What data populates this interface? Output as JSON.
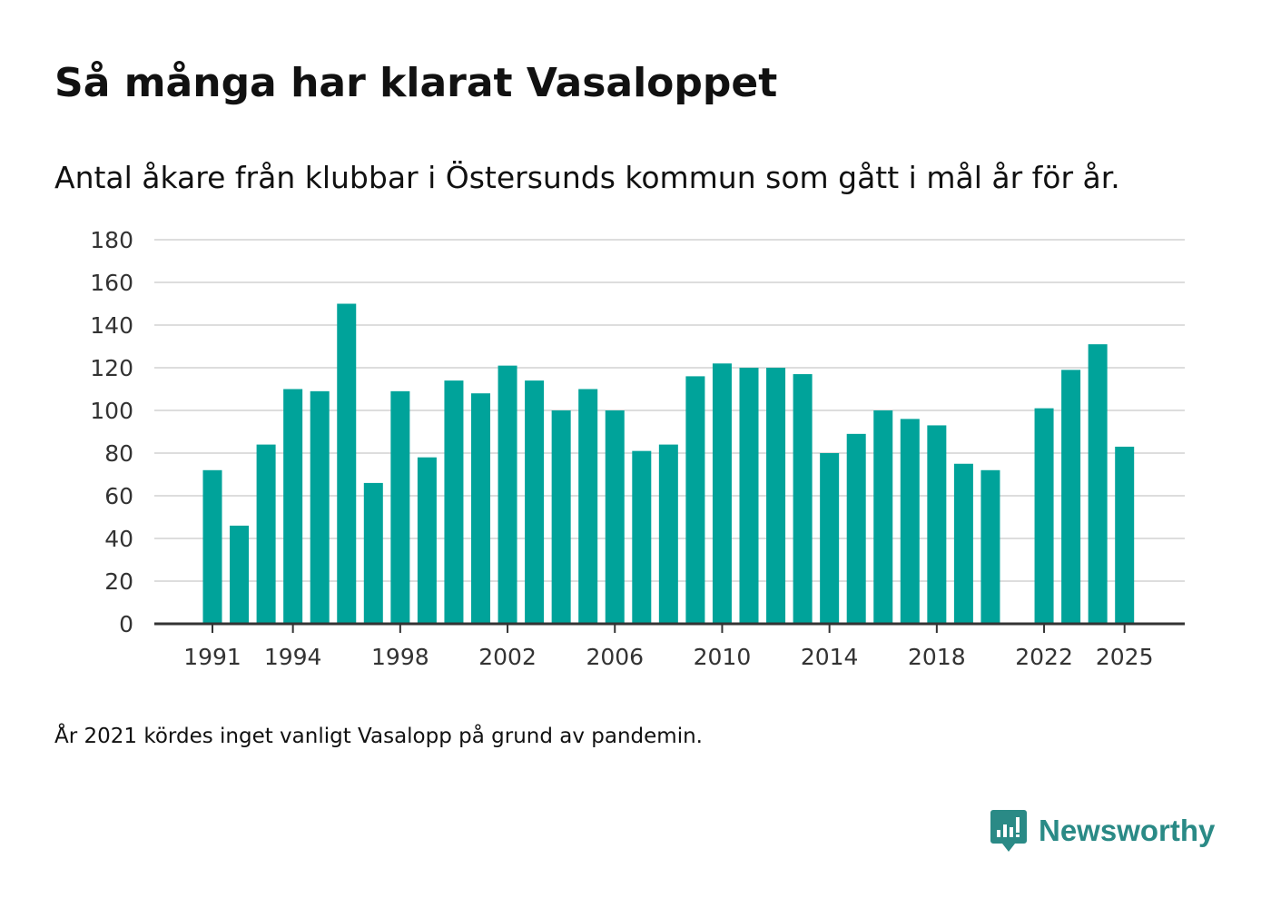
{
  "header": {
    "title": "Så många har klarat Vasaloppet",
    "subtitle": "Antal åkare från klubbar i Östersunds kommun som gått i mål år för år."
  },
  "footer": {
    "note": "År 2021 kördes inget vanligt Vasalopp på grund av pandemin.",
    "brand": "Newsworthy"
  },
  "colors": {
    "bar": "#00a39a",
    "grid": "#dddddd",
    "axis": "#333333",
    "brand": "#2a8a86"
  },
  "chart_data": {
    "type": "bar",
    "title": "Så många har klarat Vasaloppet",
    "subtitle": "Antal åkare från klubbar i Östersunds kommun som gått i mål år för år.",
    "xlabel": "",
    "ylabel": "",
    "ylim": [
      0,
      180
    ],
    "yticks": [
      0,
      20,
      40,
      60,
      80,
      100,
      120,
      140,
      160,
      180
    ],
    "xticks": [
      1991,
      1994,
      1998,
      2002,
      2006,
      2010,
      2014,
      2018,
      2022,
      2025
    ],
    "x": [
      1991,
      1992,
      1993,
      1994,
      1995,
      1996,
      1997,
      1998,
      1999,
      2000,
      2001,
      2002,
      2003,
      2004,
      2005,
      2006,
      2007,
      2008,
      2009,
      2010,
      2011,
      2012,
      2013,
      2014,
      2015,
      2016,
      2017,
      2018,
      2019,
      2020,
      2021,
      2022,
      2023,
      2024,
      2025
    ],
    "values": [
      72,
      46,
      84,
      110,
      109,
      150,
      66,
      109,
      78,
      114,
      108,
      121,
      114,
      100,
      110,
      100,
      81,
      84,
      116,
      122,
      120,
      120,
      117,
      80,
      89,
      100,
      96,
      93,
      75,
      72,
      null,
      101,
      119,
      131,
      83
    ],
    "grid": true,
    "legend": "none"
  }
}
